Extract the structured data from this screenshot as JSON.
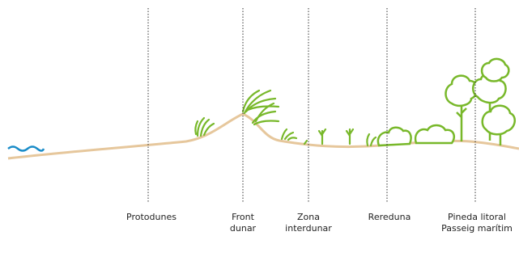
{
  "zones": [
    {
      "lines": [
        "Protodunes"
      ]
    },
    {
      "lines": [
        "Front",
        "dunar"
      ]
    },
    {
      "lines": [
        "Zona",
        "interdunar"
      ]
    },
    {
      "lines": [
        "Rereduna"
      ]
    },
    {
      "lines": [
        "Pineda litoral",
        "Passeig marítim"
      ]
    }
  ]
}
